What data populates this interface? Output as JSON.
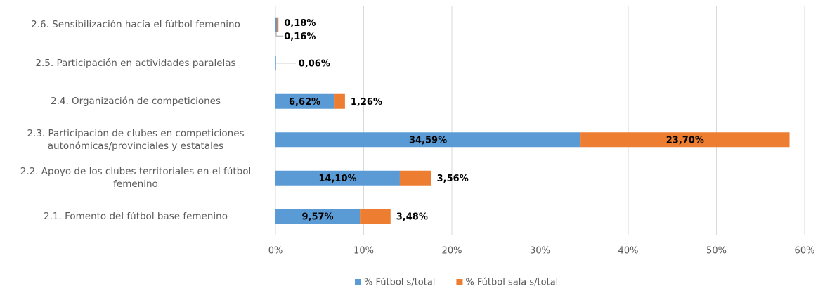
{
  "chart_data": {
    "type": "stacked-bar-horizontal",
    "categories": [
      "2.1. Fomento del fútbol base femenino",
      "2.2. Apoyo de los clubes territoriales en el fútbol femenino",
      "2.3. Participación de clubes en competiciones autonómicas/provinciales y estatales",
      "2.4. Organización de competiciones",
      "2.5. Participación en actividades paralelas",
      "2.6. Sensibilización hacía el fútbol femenino"
    ],
    "series": [
      {
        "name": "% Fútbol s/total",
        "color": "#5b9bd5",
        "values": [
          9.57,
          14.1,
          34.59,
          6.62,
          0.06,
          0.16
        ],
        "value_labels": [
          "9,57%",
          "14,10%",
          "34,59%",
          "6,62%",
          "0,06%",
          "0,16%"
        ]
      },
      {
        "name": "% Fútbol sala s/total",
        "color": "#ed7d31",
        "values": [
          3.48,
          3.56,
          23.7,
          1.26,
          null,
          0.18
        ],
        "value_labels": [
          "3,48%",
          "3,56%",
          "23,70%",
          "1,26%",
          null,
          "0,18%"
        ]
      }
    ],
    "xlim": [
      0,
      60
    ],
    "xticks": [
      {
        "value": 0,
        "label": "0%"
      },
      {
        "value": 10,
        "label": "10%"
      },
      {
        "value": 20,
        "label": "20%"
      },
      {
        "value": 30,
        "label": "30%"
      },
      {
        "value": 40,
        "label": "40%"
      },
      {
        "value": 50,
        "label": "50%"
      },
      {
        "value": 60,
        "label": "60%"
      }
    ],
    "grid": true,
    "legend": "bottom"
  }
}
